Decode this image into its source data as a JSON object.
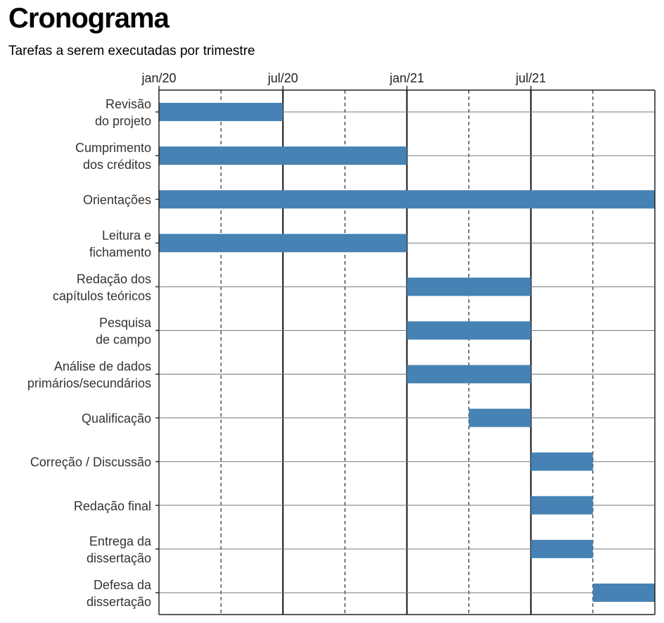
{
  "chart_data": {
    "type": "gantt",
    "title": "Cronograma",
    "subtitle": "Tarefas a serem executadas por trimestre",
    "x_ticks": [
      "jan/20",
      "jul/20",
      "jan/21",
      "jul/21"
    ],
    "x_range": [
      "2020-01",
      "2022-01"
    ],
    "minor_gridlines": [
      "2020-04",
      "2020-10",
      "2021-04",
      "2021-10"
    ],
    "bar_color": "#4682b4",
    "tasks": [
      {
        "label": [
          "Revisão",
          "do projeto"
        ],
        "start": "2020-01",
        "end": "2020-07"
      },
      {
        "label": [
          "Cumprimento",
          "dos créditos"
        ],
        "start": "2020-01",
        "end": "2021-01"
      },
      {
        "label": [
          "Orientações"
        ],
        "start": "2020-01",
        "end": "2022-01"
      },
      {
        "label": [
          "Leitura e",
          "fichamento"
        ],
        "start": "2020-01",
        "end": "2021-01"
      },
      {
        "label": [
          "Redação dos",
          "capítulos teóricos"
        ],
        "start": "2021-01",
        "end": "2021-07"
      },
      {
        "label": [
          "Pesquisa",
          "de campo"
        ],
        "start": "2021-01",
        "end": "2021-07"
      },
      {
        "label": [
          "Análise de dados",
          "primários/secundários"
        ],
        "start": "2021-01",
        "end": "2021-07"
      },
      {
        "label": [
          "Qualificação"
        ],
        "start": "2021-04",
        "end": "2021-07"
      },
      {
        "label": [
          "Correção / Discussão"
        ],
        "start": "2021-07",
        "end": "2021-10"
      },
      {
        "label": [
          "Redação final"
        ],
        "start": "2021-07",
        "end": "2021-10"
      },
      {
        "label": [
          "Entrega da",
          "dissertação"
        ],
        "start": "2021-07",
        "end": "2021-10"
      },
      {
        "label": [
          "Defesa da",
          "dissertação"
        ],
        "start": "2021-10",
        "end": "2022-01"
      }
    ]
  }
}
